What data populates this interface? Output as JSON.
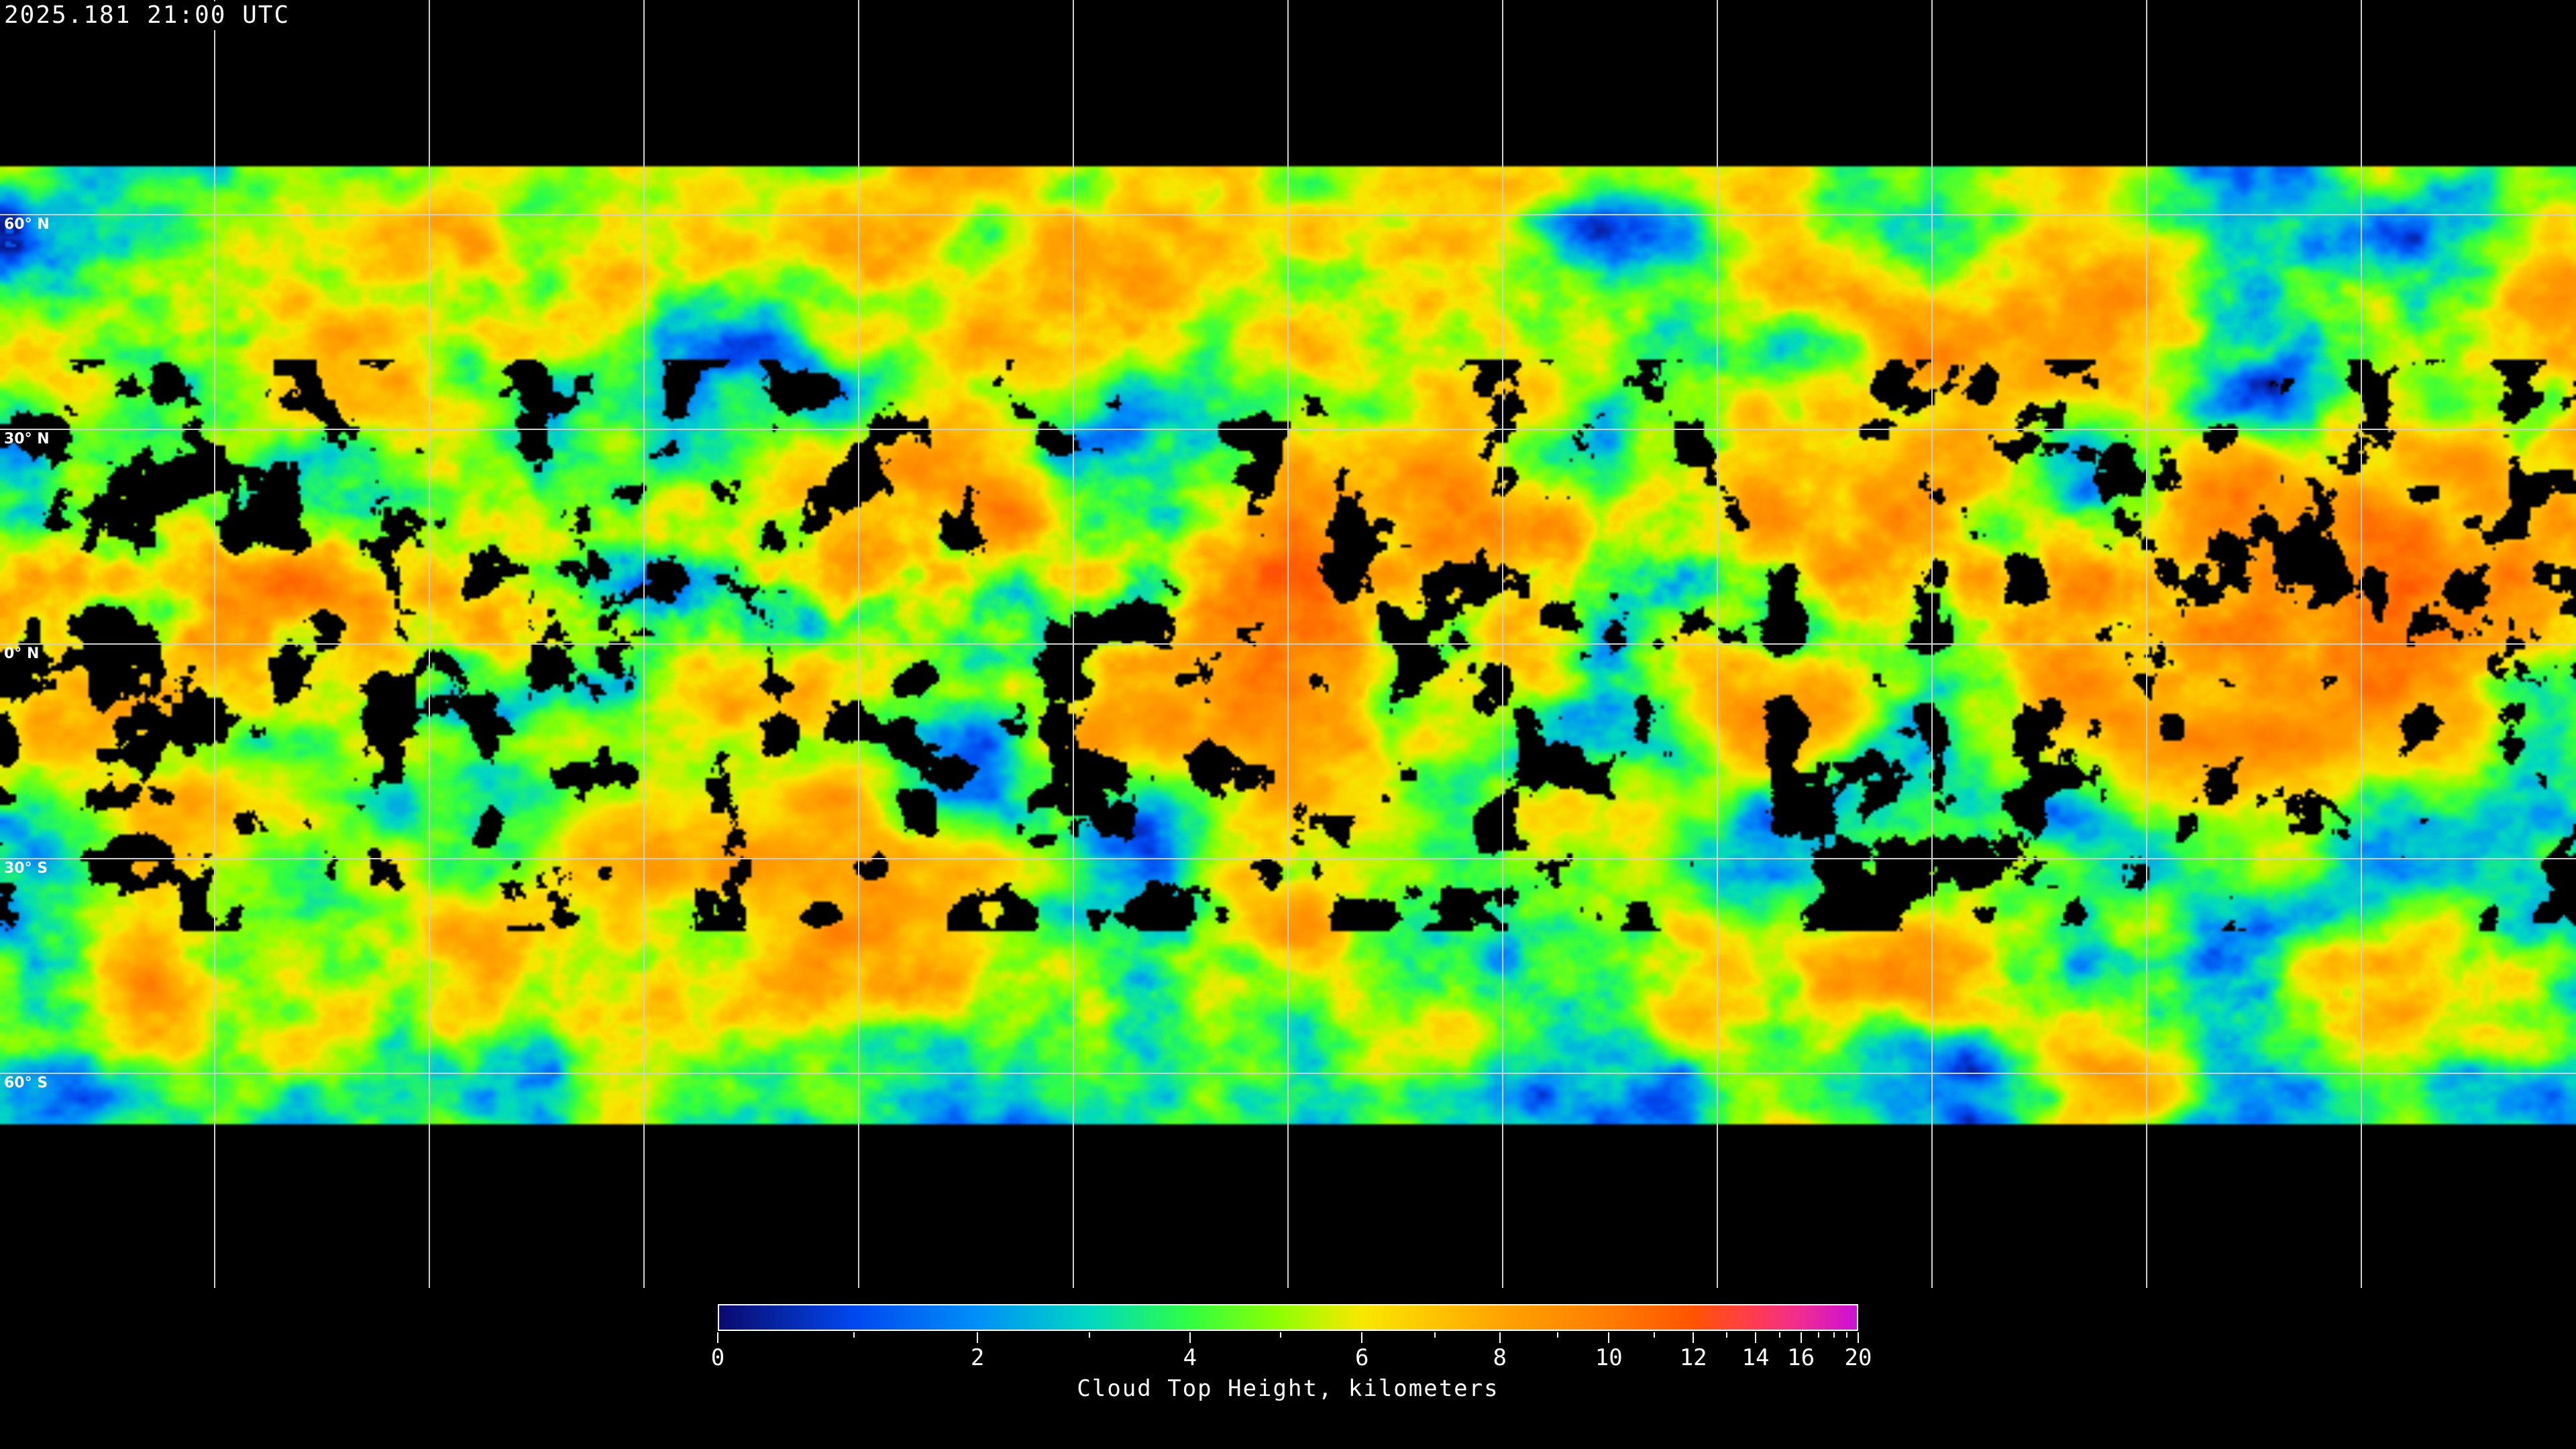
{
  "title": "2025.181 21:00 UTC",
  "map": {
    "projection": "equirectangular",
    "gridlines": true,
    "graticule_spacing_degrees": 30,
    "latitude_labels": [
      "60° N",
      "30° N",
      "0° N",
      "30° S",
      "60° S"
    ],
    "latitude_values": [
      60,
      30,
      0,
      -30,
      -60
    ],
    "longitude_lines": [
      -150,
      -120,
      -90,
      -60,
      -30,
      0,
      30,
      60,
      90,
      120,
      150
    ],
    "coastlines": true,
    "no_data_color": "#000000"
  },
  "colorbar": {
    "label": "Cloud Top Height, kilometers",
    "range": [
      0,
      20
    ],
    "scale": "nonlinear (pressure-like)",
    "major_ticks": [
      0,
      2,
      4,
      6,
      8,
      10,
      12,
      14,
      16,
      20
    ],
    "tick_labels": [
      "0",
      "2",
      "4",
      "6",
      "8",
      "10",
      "12",
      "14",
      "16",
      "20"
    ],
    "minor_ticks": [
      1,
      3,
      5,
      7,
      9,
      11,
      13,
      15,
      17,
      18,
      19
    ],
    "color_stops": [
      {
        "value": 0,
        "color": "#0a0a6e"
      },
      {
        "value": 1,
        "color": "#0048f0"
      },
      {
        "value": 2,
        "color": "#0090f8"
      },
      {
        "value": 3,
        "color": "#00d8c0"
      },
      {
        "value": 4,
        "color": "#30ff40"
      },
      {
        "value": 5,
        "color": "#90ff00"
      },
      {
        "value": 6,
        "color": "#f8e800"
      },
      {
        "value": 7,
        "color": "#ffc400"
      },
      {
        "value": 8,
        "color": "#ffa400"
      },
      {
        "value": 10,
        "color": "#ff7c00"
      },
      {
        "value": 12,
        "color": "#ff5400"
      },
      {
        "value": 14,
        "color": "#ff3c50"
      },
      {
        "value": 16,
        "color": "#f02c90"
      },
      {
        "value": 20,
        "color": "#cc10d8"
      }
    ]
  }
}
